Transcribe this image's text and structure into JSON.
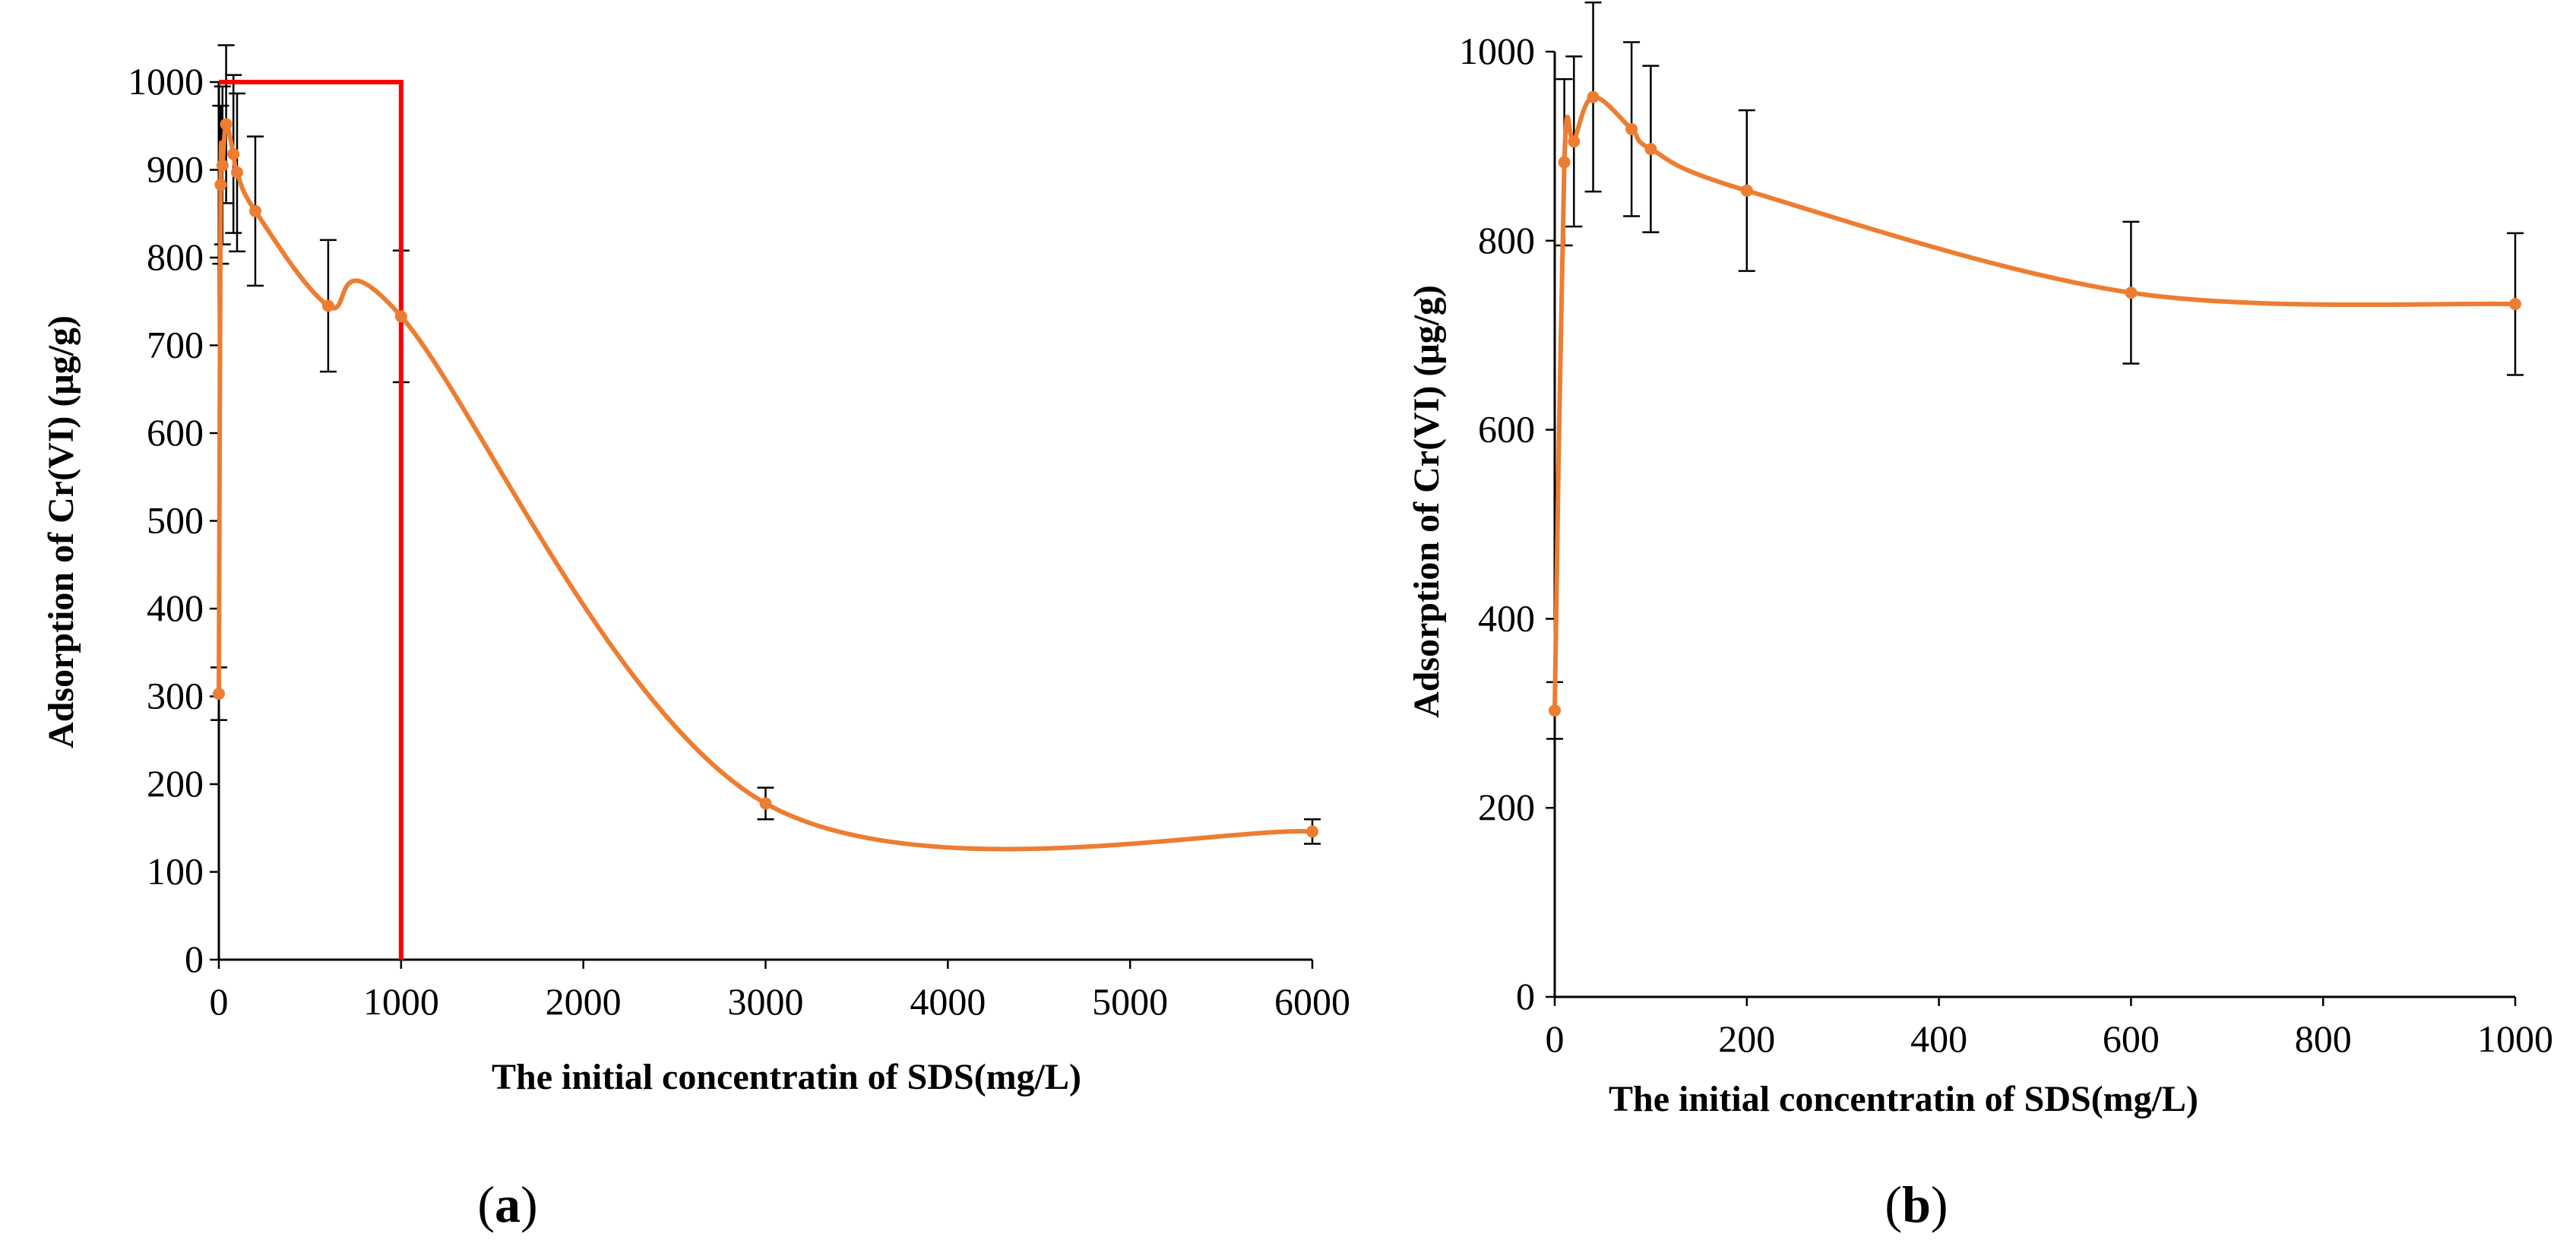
{
  "figure": {
    "panel_a_caption": {
      "open": "(",
      "letter": "a",
      "close": ")"
    },
    "panel_b_caption": {
      "open": "(",
      "letter": "b",
      "close": ")"
    }
  },
  "colors": {
    "series": "#ED7D31",
    "highlight": "#FF0000",
    "axis": "#000000"
  },
  "chart_data": [
    {
      "type": "line",
      "panel": "a",
      "title": "",
      "xlabel": "The initial  concentratin  of  SDS(mg/L)",
      "ylabel": "Adsorption of Cr(VI) (μg/g)",
      "xlim": [
        0,
        6000
      ],
      "ylim": [
        0,
        1000
      ],
      "xticks": [
        0,
        1000,
        2000,
        3000,
        4000,
        5000,
        6000
      ],
      "yticks": [
        0,
        100,
        200,
        300,
        400,
        500,
        600,
        700,
        800,
        900,
        1000
      ],
      "grid": false,
      "smooth": true,
      "series": [
        {
          "name": "Adsorption",
          "x": [
            0,
            10,
            20,
            40,
            80,
            100,
            200,
            600,
            1000,
            3000,
            6000
          ],
          "y": [
            303,
            883,
            905,
            952,
            918,
            897,
            853,
            745,
            733,
            178,
            146
          ],
          "error": [
            30,
            90,
            90,
            90,
            90,
            90,
            85,
            75,
            75,
            18,
            14
          ]
        }
      ],
      "highlight_box": {
        "x": [
          0,
          1000
        ],
        "y": [
          0,
          1000
        ]
      }
    },
    {
      "type": "line",
      "panel": "b",
      "title": "",
      "xlabel": "The initial concentratin of SDS(mg/L)",
      "ylabel": "Adsorption of Cr(VI) (μg/g)",
      "xlim": [
        0,
        1000
      ],
      "ylim": [
        0,
        1000
      ],
      "xticks": [
        0,
        200,
        400,
        600,
        800,
        1000
      ],
      "yticks": [
        0,
        200,
        400,
        600,
        800,
        1000
      ],
      "grid": false,
      "smooth": true,
      "series": [
        {
          "name": "Adsorption",
          "x": [
            0,
            10,
            20,
            40,
            80,
            100,
            200,
            600,
            1000
          ],
          "y": [
            303,
            883,
            905,
            952,
            918,
            897,
            853,
            745,
            733
          ],
          "error": [
            30,
            88,
            90,
            100,
            92,
            88,
            85,
            75,
            75
          ]
        }
      ]
    }
  ]
}
